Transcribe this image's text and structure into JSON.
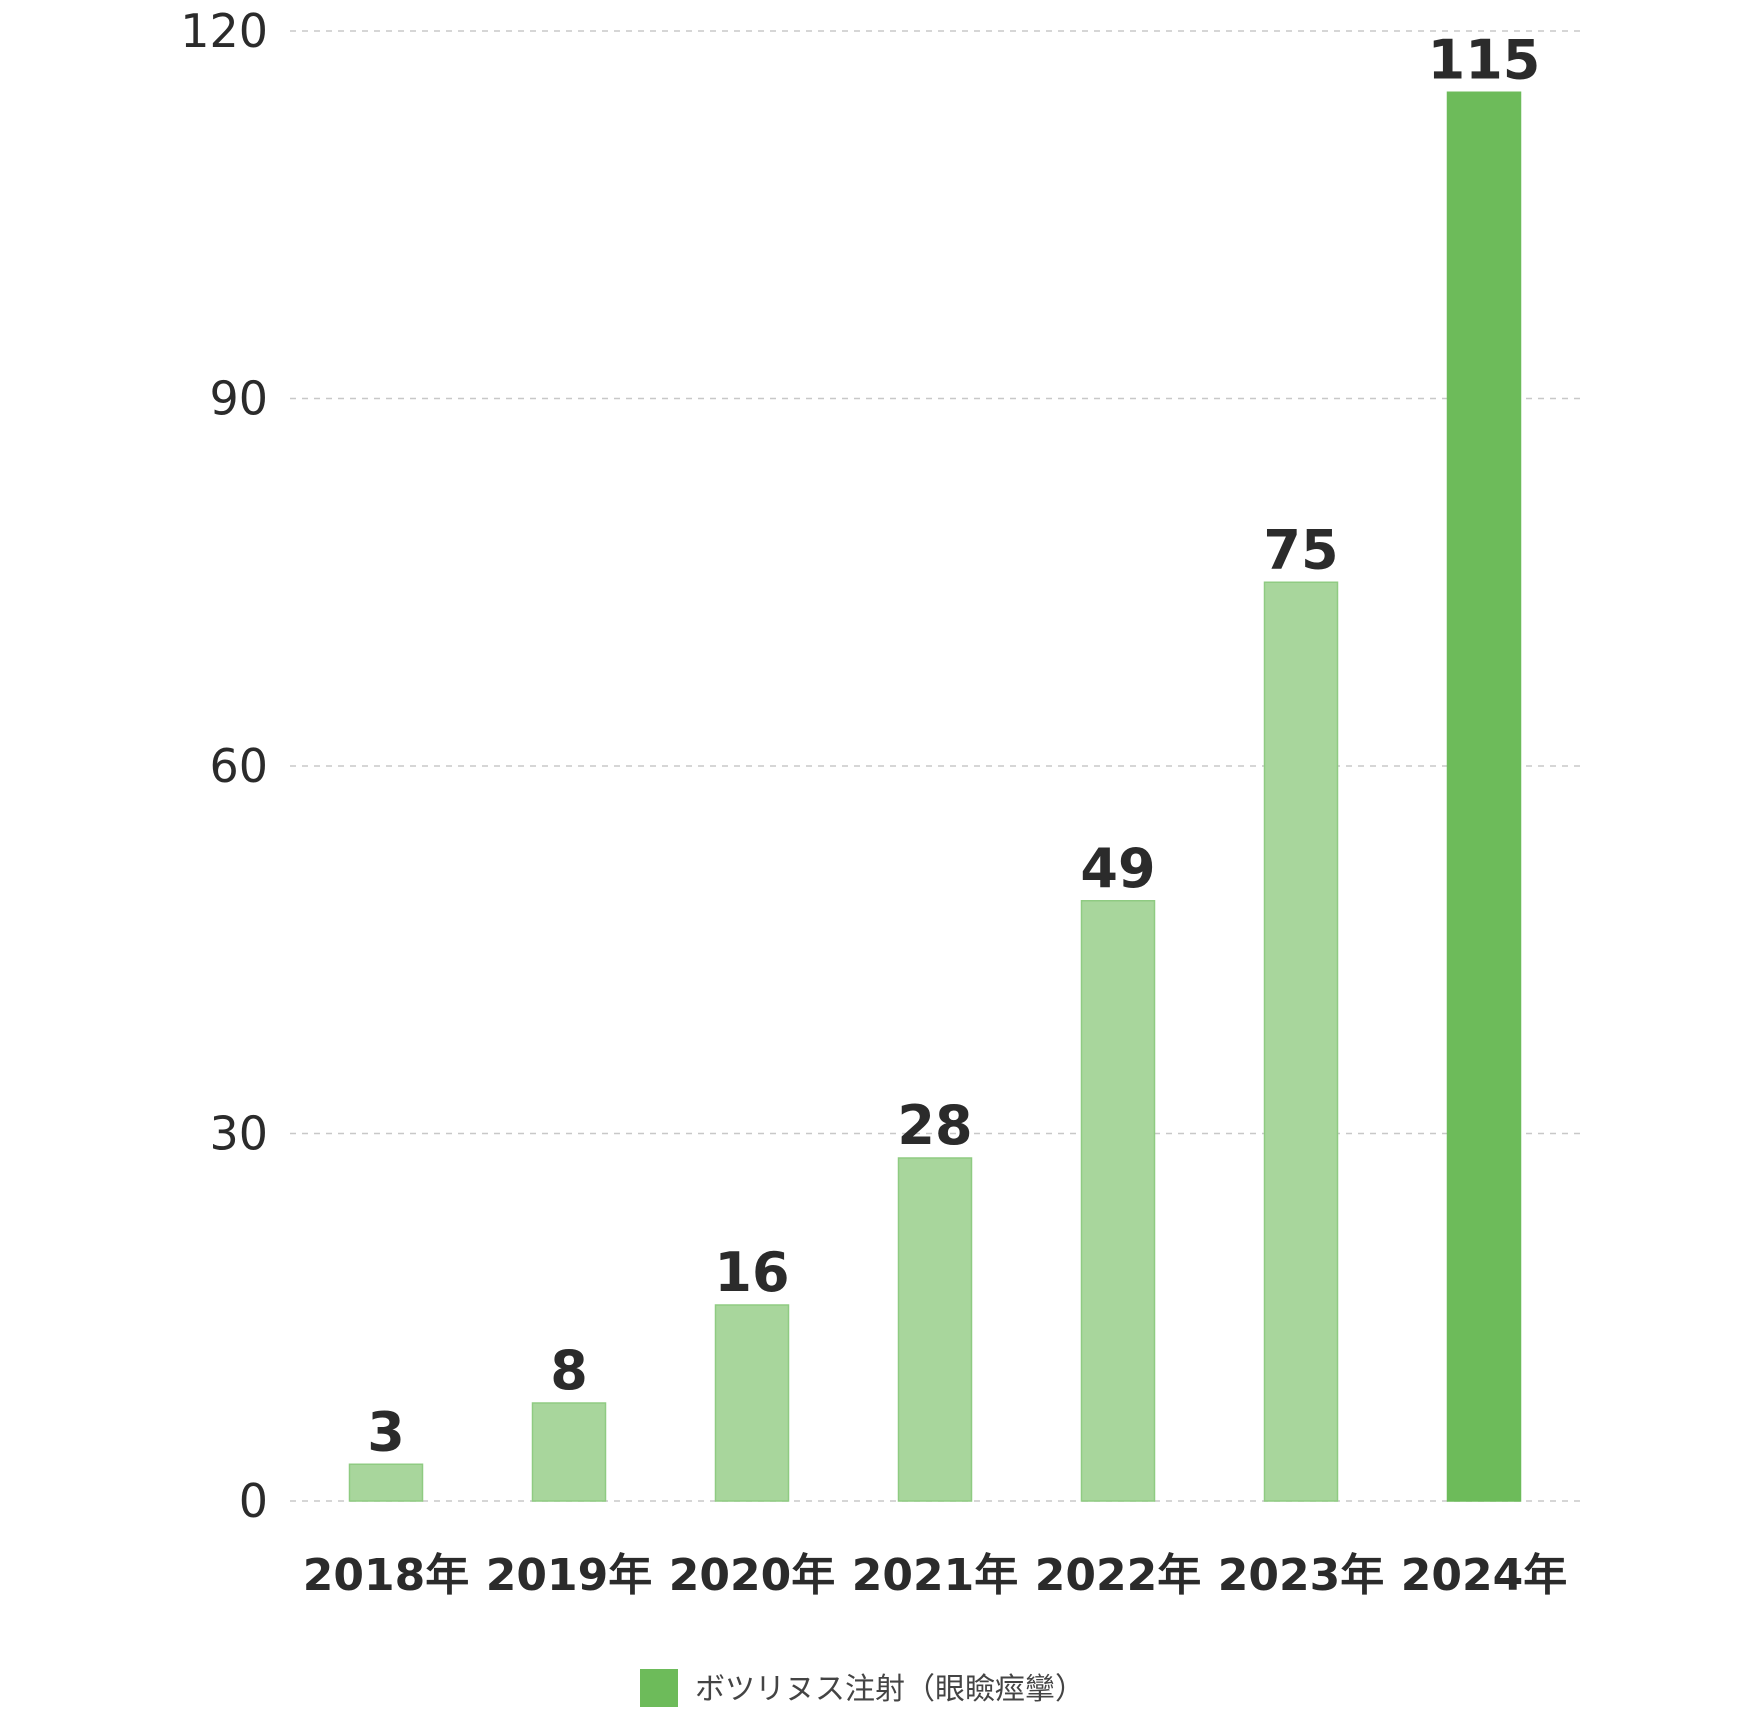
{
  "chart_data": {
    "type": "bar",
    "categories": [
      "2018年",
      "2019年",
      "2020年",
      "2021年",
      "2022年",
      "2023年",
      "2024年"
    ],
    "series": [
      {
        "name": "ボツリヌス注射（眼瞼痙攣）",
        "values": [
          3,
          8,
          16,
          28,
          49,
          75,
          115
        ]
      }
    ],
    "data_labels": [
      "3",
      "8",
      "16",
      "28",
      "49",
      "75",
      "115"
    ],
    "y_ticks": [
      0,
      30,
      60,
      90,
      120
    ],
    "ylim": [
      0,
      120
    ],
    "title": "",
    "xlabel": "",
    "ylabel": "",
    "grid": true,
    "legend_position": "bottom-center",
    "colors": {
      "bar_light": "#a8d69c",
      "bar_light_edge": "#8fcb82",
      "bar_highlight": "#6dbb5a",
      "highlight_index": 6
    }
  }
}
